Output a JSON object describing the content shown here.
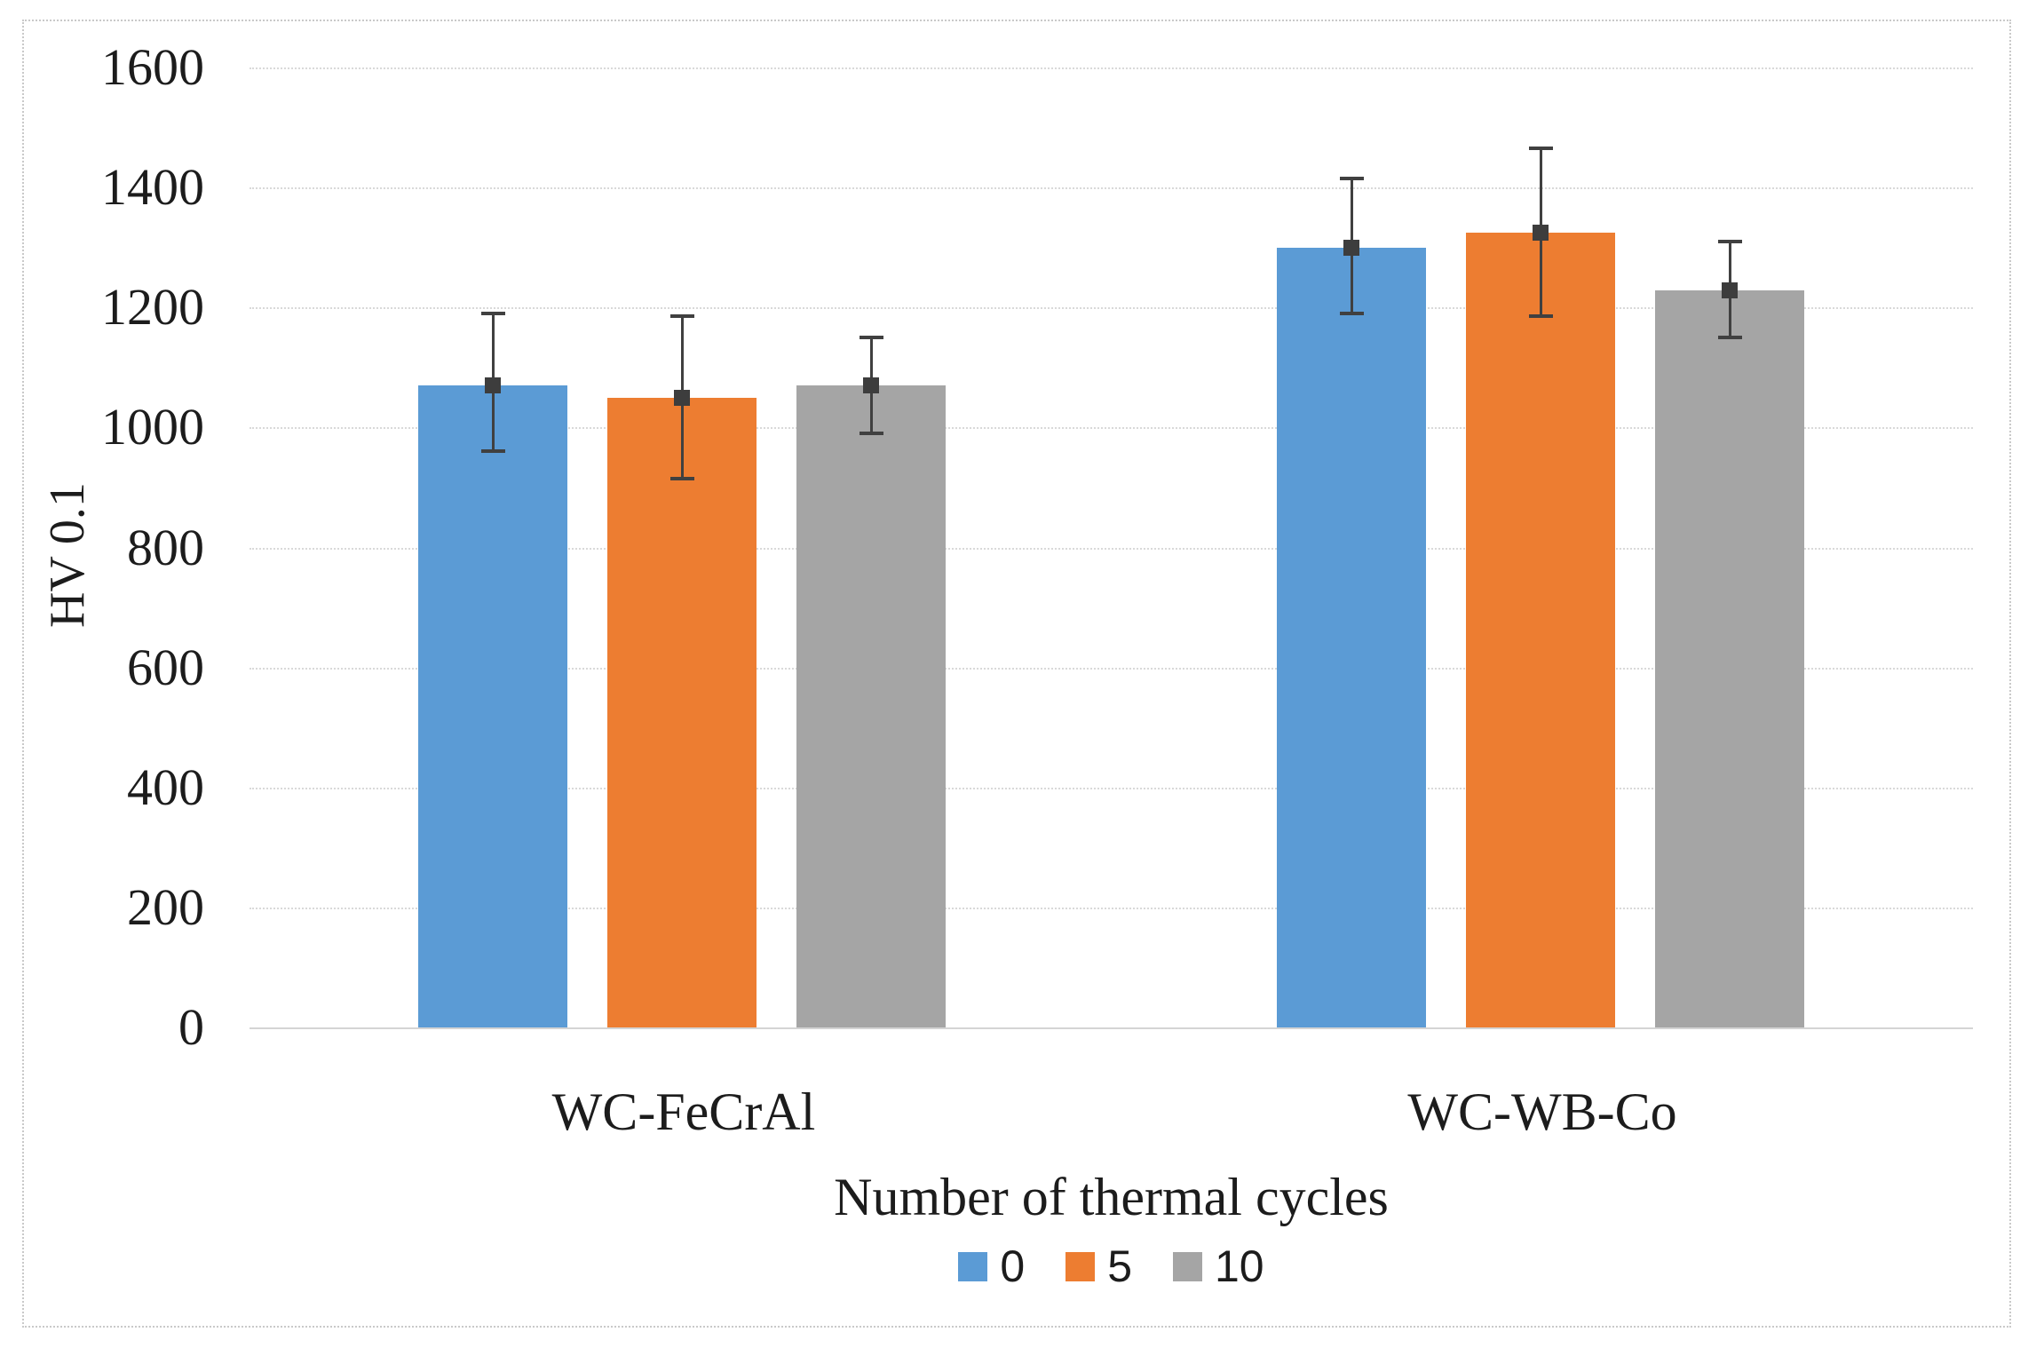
{
  "figure": {
    "background_color": "#ffffff",
    "frame_border_color": "#c9c9c9",
    "gridline_color": "#d9d9d9",
    "text_color": "#1c1c1c",
    "error_bar_color": "#404040"
  },
  "chart_data": {
    "type": "bar",
    "title": "",
    "categories": [
      "WC-FeCrAl",
      "WC-WB-Co"
    ],
    "series": [
      {
        "name": "0",
        "color": "#5B9BD5",
        "values": [
          1070,
          1300
        ],
        "error_plus": [
          120,
          115
        ],
        "error_minus": [
          110,
          110
        ]
      },
      {
        "name": "5",
        "color": "#ED7D31",
        "values": [
          1050,
          1325
        ],
        "error_plus": [
          135,
          140
        ],
        "error_minus": [
          135,
          140
        ]
      },
      {
        "name": "10",
        "color": "#A5A5A5",
        "values": [
          1070,
          1228
        ],
        "error_plus": [
          80,
          82
        ],
        "error_minus": [
          80,
          78
        ]
      }
    ],
    "xlabel": "Number of thermal cycles",
    "ylabel": "HV 0.1",
    "ylim": [
      0,
      1600
    ],
    "yticks": [
      0,
      200,
      400,
      600,
      800,
      1000,
      1200,
      1400,
      1600
    ],
    "grid": "horizontal-only",
    "legend_position": "bottom-center",
    "error_bars": "mean marker with symmetric caps"
  }
}
